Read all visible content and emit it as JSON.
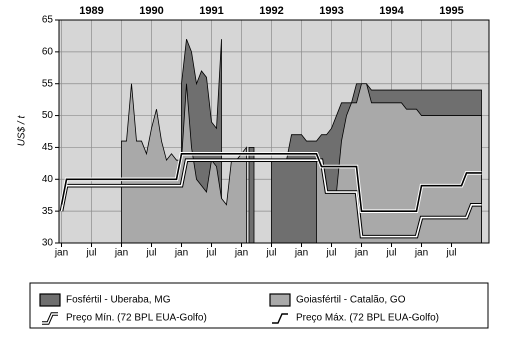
{
  "chart_data": {
    "type": "area",
    "ylabel": "US$ / t",
    "x": [
      0,
      1,
      2,
      3,
      4,
      5,
      6,
      7,
      8,
      9,
      10,
      11,
      12,
      13,
      14,
      15,
      16,
      17,
      18,
      19,
      20,
      21,
      22,
      23,
      24,
      25,
      26,
      27,
      28,
      29,
      30,
      31,
      32,
      33,
      34,
      35,
      36,
      37,
      38,
      39,
      40,
      41,
      42,
      43,
      44,
      45,
      46,
      47,
      48,
      49,
      50,
      51,
      52,
      53,
      54,
      55,
      56,
      57,
      58,
      59,
      60,
      61,
      62,
      63,
      64,
      65,
      66,
      67,
      68,
      69,
      70,
      71,
      72,
      73,
      74,
      75,
      76,
      77,
      78,
      79,
      80,
      81,
      82,
      83,
      84
    ],
    "xlim": [
      -0.5,
      85.5
    ],
    "xticks": [
      {
        "value": 0,
        "label": "jan"
      },
      {
        "value": 6,
        "label": "jul"
      },
      {
        "value": 12,
        "label": "jan"
      },
      {
        "value": 18,
        "label": "jul"
      },
      {
        "value": 24,
        "label": "jan"
      },
      {
        "value": 30,
        "label": "jul"
      },
      {
        "value": 36,
        "label": "jan"
      },
      {
        "value": 42,
        "label": "jul"
      },
      {
        "value": 48,
        "label": "jan"
      },
      {
        "value": 54,
        "label": "jul"
      },
      {
        "value": 60,
        "label": "jan"
      },
      {
        "value": 66,
        "label": "jul"
      },
      {
        "value": 72,
        "label": "jan"
      },
      {
        "value": 78,
        "label": "jul"
      }
    ],
    "top_xticks": [
      {
        "value": 6,
        "label": "1989"
      },
      {
        "value": 18,
        "label": "1990"
      },
      {
        "value": 30,
        "label": "1991"
      },
      {
        "value": 42,
        "label": "1992"
      },
      {
        "value": 54,
        "label": "1993"
      },
      {
        "value": 66,
        "label": "1994"
      },
      {
        "value": 78,
        "label": "1995"
      }
    ],
    "ylim": [
      30,
      65
    ],
    "yticks": [
      30,
      35,
      40,
      45,
      50,
      55,
      60,
      65
    ],
    "grid": true,
    "background": "#d6d6d6",
    "series": [
      {
        "name": "Fosfértil - Uberaba, MG",
        "type": "area",
        "color": "#6f6f6f",
        "values": [
          null,
          null,
          null,
          null,
          null,
          null,
          null,
          null,
          null,
          null,
          null,
          null,
          null,
          null,
          null,
          null,
          null,
          null,
          null,
          null,
          null,
          null,
          null,
          null,
          55,
          62,
          60,
          55,
          57,
          56,
          49,
          48,
          62,
          null,
          null,
          null,
          null,
          null,
          45,
          null,
          null,
          null,
          43,
          43,
          43,
          43,
          47,
          47,
          47,
          46,
          46,
          46,
          47,
          47,
          48,
          50,
          52,
          52,
          52,
          55,
          55,
          55,
          54,
          54,
          54,
          54,
          54,
          54,
          54,
          54,
          54,
          54,
          54,
          54,
          54,
          54,
          54,
          54,
          54,
          54,
          54,
          54,
          54,
          54,
          54
        ]
      },
      {
        "name": "Goiasfértil - Catalão, GO",
        "type": "area",
        "color": "#a9a9a9",
        "values": [
          null,
          null,
          null,
          null,
          null,
          null,
          null,
          null,
          null,
          null,
          null,
          null,
          46,
          46,
          55,
          46,
          46,
          44,
          48,
          51,
          46,
          43,
          44,
          43,
          43,
          55,
          45,
          40,
          39,
          38,
          43,
          42,
          37,
          36,
          43,
          43,
          44,
          45,
          null,
          null,
          null,
          null,
          null,
          null,
          null,
          null,
          null,
          null,
          null,
          null,
          null,
          43,
          43,
          38,
          38,
          38,
          46,
          50,
          52,
          52,
          55,
          55,
          52,
          52,
          52,
          52,
          52,
          52,
          52,
          51,
          51,
          51,
          50,
          50,
          50,
          50,
          50,
          50,
          50,
          50,
          50,
          50,
          50,
          50,
          50
        ]
      },
      {
        "name": "Preço Mín. (72 BPL EUA-Golfo)",
        "type": "line",
        "color": "#ffffff",
        "values": [
          35,
          39,
          39,
          39,
          39,
          39,
          39,
          39,
          39,
          39,
          39,
          39,
          39,
          39,
          39,
          39,
          39,
          39,
          39,
          39,
          39,
          39,
          39,
          39,
          39,
          43,
          43,
          43,
          43,
          43,
          43,
          43,
          43,
          43,
          43,
          43,
          43,
          43,
          43,
          43,
          43,
          43,
          43,
          43,
          43,
          43,
          43,
          43,
          43,
          43,
          43,
          43,
          43,
          38,
          38,
          38,
          38,
          38,
          38,
          38,
          31,
          31,
          31,
          31,
          31,
          31,
          31,
          31,
          31,
          31,
          31,
          31,
          34,
          34,
          34,
          34,
          34,
          34,
          34,
          34,
          34,
          34,
          36,
          36,
          36
        ]
      },
      {
        "name": "Preço Máx. (72 BPL EUA-Golfo)",
        "type": "line",
        "color": "#000000",
        "values": [
          36,
          40,
          40,
          40,
          40,
          40,
          40,
          40,
          40,
          40,
          40,
          40,
          40,
          40,
          40,
          40,
          40,
          40,
          40,
          40,
          40,
          40,
          40,
          40,
          44,
          44,
          44,
          44,
          44,
          44,
          44,
          44,
          44,
          44,
          44,
          44,
          44,
          44,
          44,
          44,
          44,
          44,
          44,
          44,
          44,
          44,
          44,
          44,
          44,
          44,
          44,
          44,
          42,
          42,
          42,
          42,
          42,
          42,
          42,
          42,
          35,
          35,
          35,
          35,
          35,
          35,
          35,
          35,
          35,
          35,
          35,
          35,
          39,
          39,
          39,
          39,
          39,
          39,
          39,
          39,
          39,
          41,
          41,
          41,
          41
        ]
      }
    ]
  }
}
